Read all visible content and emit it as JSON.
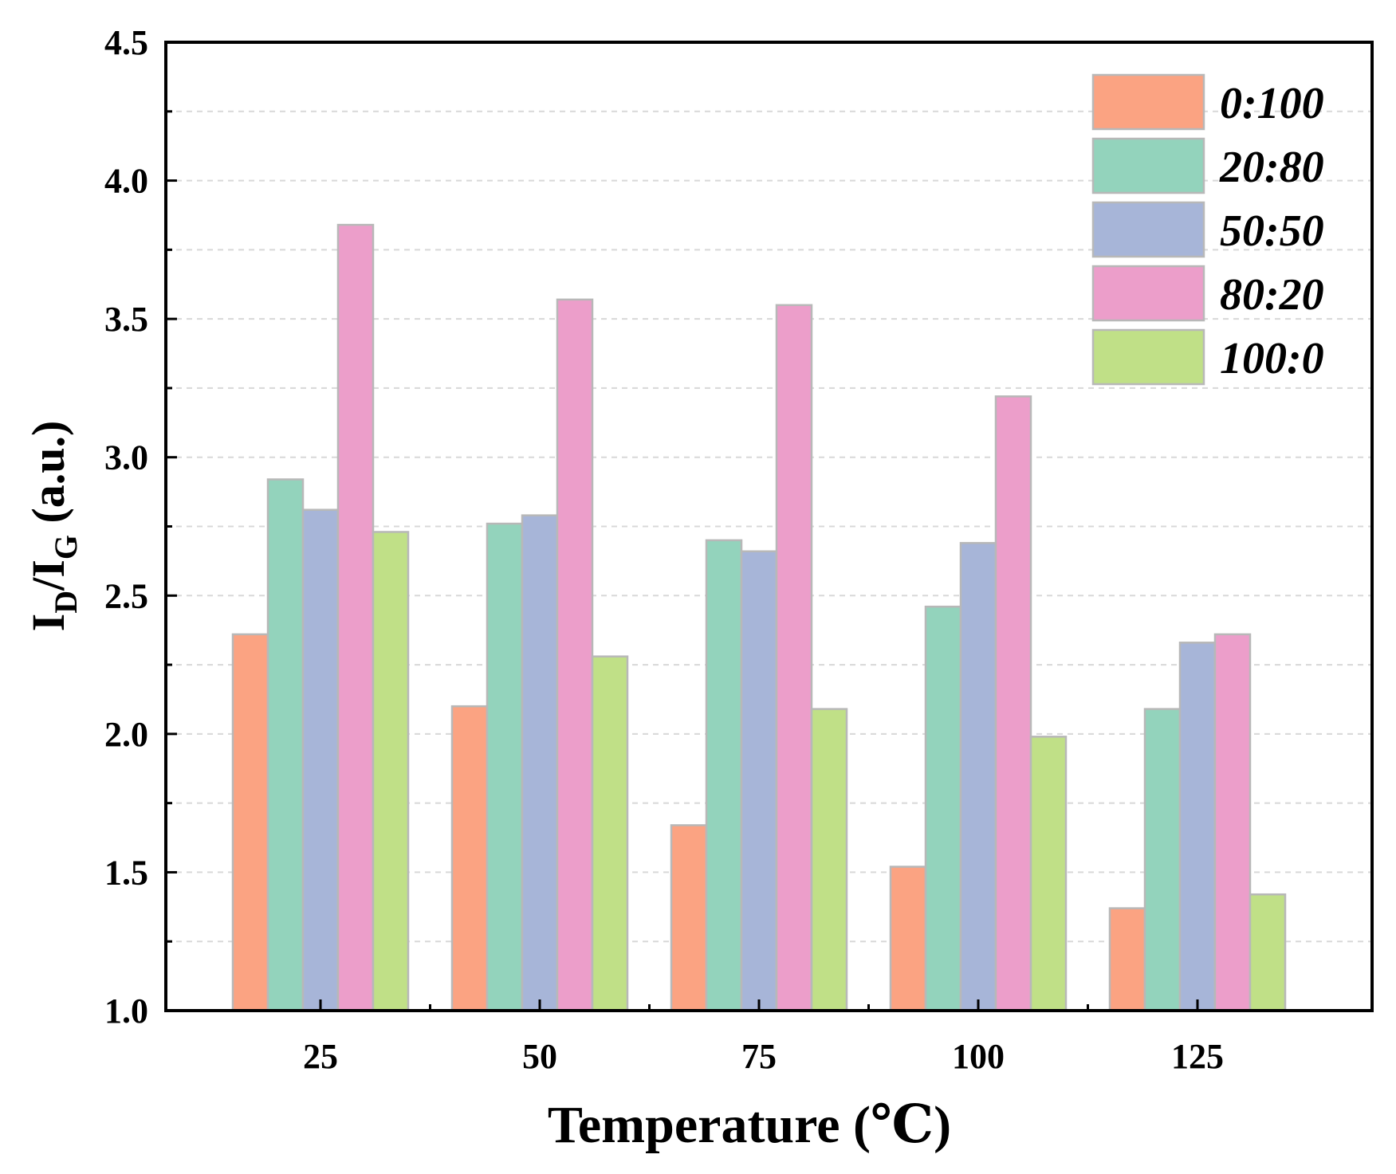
{
  "chart_data": {
    "type": "bar",
    "categories": [
      "25",
      "50",
      "75",
      "100",
      "125"
    ],
    "series": [
      {
        "name": "0:100",
        "color": "#FBA382",
        "values": [
          2.36,
          2.1,
          1.67,
          1.52,
          1.37
        ]
      },
      {
        "name": "20:80",
        "color": "#93D3BC",
        "values": [
          2.92,
          2.76,
          2.7,
          2.46,
          2.09
        ]
      },
      {
        "name": "50:50",
        "color": "#A7B5D8",
        "values": [
          2.81,
          2.79,
          2.66,
          2.69,
          2.33
        ]
      },
      {
        "name": "80:20",
        "color": "#EC9ECA",
        "values": [
          3.84,
          3.57,
          3.55,
          3.22,
          2.36
        ]
      },
      {
        "name": "100:0",
        "color": "#C0E087",
        "values": [
          2.73,
          2.28,
          2.09,
          1.99,
          1.42
        ]
      }
    ],
    "xlabel": "Temperature (℃)",
    "ylabel_main": "I",
    "ylabel_sub1": "D",
    "ylabel_slash": "/I",
    "ylabel_sub2": "G",
    "ylabel_unit": " (a.u.)",
    "ylim": [
      1.0,
      4.5
    ],
    "yticks": [
      "1.0",
      "1.5",
      "2.0",
      "2.5",
      "3.0",
      "3.5",
      "4.0",
      "4.5"
    ],
    "grid": "horizontal dashed",
    "legend_position": "top-right"
  }
}
